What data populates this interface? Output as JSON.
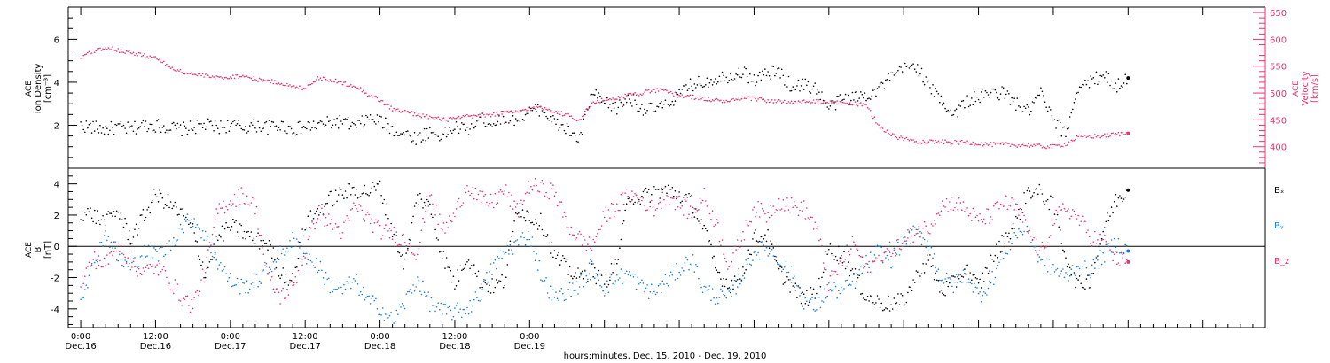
{
  "colors": {
    "black": "#000000",
    "pink": "#e8336a",
    "blue": "#1a7fd6"
  },
  "chart_data": [
    {
      "type": "scatter",
      "ylabel_left": [
        "ACE",
        "Ion Density",
        "[cm⁻³]"
      ],
      "ylabel_right": [
        "ACE",
        "Velocity",
        "[km/s]"
      ],
      "ylim_left": [
        0.0,
        7.5
      ],
      "ylim_right": [
        360,
        660
      ],
      "yticks_left": [
        "2",
        "4",
        "6"
      ],
      "yticks_right": [
        "400",
        "450",
        "500",
        "550",
        "600",
        "650"
      ],
      "series": [
        {
          "name": "Ion Density",
          "axis": "left",
          "color": "#000000",
          "x": [
            0,
            2,
            4,
            6,
            8,
            10,
            12,
            14,
            16,
            18,
            20,
            22,
            24,
            26,
            28,
            30,
            32,
            34,
            36,
            38,
            40,
            42,
            44,
            46,
            48,
            50,
            52,
            54,
            56,
            58,
            60,
            62,
            64,
            66,
            68,
            70,
            72,
            74,
            76,
            78,
            80,
            82,
            84,
            86,
            88,
            90,
            92,
            94,
            96,
            98,
            100,
            102,
            104,
            106,
            108,
            110,
            112,
            114,
            116,
            118,
            120,
            122,
            124,
            126,
            128,
            130,
            132,
            134,
            136,
            138,
            140,
            142,
            144,
            146,
            148,
            150,
            152,
            154,
            156,
            158,
            160,
            162,
            164,
            166,
            168
          ],
          "values": [
            2.0,
            1.9,
            1.8,
            1.9,
            1.8,
            2.0,
            2.0,
            1.9,
            1.8,
            1.9,
            2.0,
            1.9,
            2.0,
            1.9,
            2.0,
            1.9,
            2.0,
            1.8,
            1.9,
            2.0,
            2.1,
            2.2,
            1.9,
            2.3,
            2.2,
            1.8,
            1.6,
            1.4,
            1.7,
            1.5,
            1.9,
            1.8,
            2.3,
            2.1,
            2.4,
            2.3,
            2.6,
            2.8,
            2.1,
            1.8,
            1.3,
            3.5,
            3.0,
            2.8,
            3.3,
            2.8,
            2.7,
            3.0,
            3.4,
            3.9,
            4.0,
            4.2,
            4.3,
            4.5,
            4.1,
            4.4,
            4.5,
            3.8,
            3.9,
            3.7,
            2.8,
            3.2,
            3.3,
            3.4,
            3.7,
            4.2,
            4.6,
            4.8,
            3.8,
            3.2,
            2.5,
            3.1,
            3.3,
            3.5,
            3.5,
            3.0,
            2.6,
            3.5,
            2.2,
            1.6,
            3.8,
            4.0,
            4.4,
            3.8,
            4.2
          ]
        },
        {
          "name": "Velocity",
          "axis": "right",
          "color": "#e8336a",
          "x": [
            0,
            2,
            4,
            6,
            8,
            10,
            12,
            14,
            16,
            18,
            20,
            22,
            24,
            26,
            28,
            30,
            32,
            34,
            36,
            38,
            40,
            42,
            44,
            46,
            48,
            50,
            52,
            54,
            56,
            58,
            60,
            62,
            64,
            66,
            68,
            70,
            72,
            74,
            76,
            78,
            80,
            82,
            84,
            86,
            88,
            90,
            92,
            94,
            96,
            98,
            100,
            102,
            104,
            106,
            108,
            110,
            112,
            114,
            116,
            118,
            120,
            122,
            124,
            126,
            128,
            130,
            132,
            134,
            136,
            138,
            140,
            142,
            144,
            146,
            148,
            150,
            152,
            154,
            156,
            158,
            160,
            162,
            164,
            166,
            168
          ],
          "values": [
            565,
            578,
            585,
            580,
            575,
            570,
            566,
            550,
            540,
            535,
            532,
            528,
            530,
            532,
            526,
            522,
            519,
            511,
            509,
            528,
            525,
            518,
            514,
            498,
            487,
            470,
            465,
            460,
            455,
            450,
            452,
            456,
            458,
            460,
            463,
            465,
            471,
            473,
            466,
            459,
            450,
            480,
            488,
            491,
            497,
            500,
            505,
            503,
            495,
            493,
            489,
            486,
            484,
            489,
            490,
            486,
            484,
            481,
            484,
            484,
            482,
            482,
            480,
            476,
            440,
            421,
            415,
            410,
            410,
            409,
            408,
            408,
            406,
            404,
            404,
            403,
            403,
            401,
            400,
            405,
            418,
            419,
            420,
            423,
            425
          ]
        }
      ]
    },
    {
      "type": "scatter",
      "ylabel": [
        "ACE",
        "B",
        "[nT]"
      ],
      "ylim": [
        -5.2,
        5.0
      ],
      "yticks": [
        "-4",
        "-2",
        "0",
        "2",
        "4"
      ],
      "legend": [
        {
          "label": "Bₓ",
          "color": "#000000"
        },
        {
          "label": "Bᵧ",
          "color": "#1a7fd6"
        },
        {
          "label": "B_z",
          "color": "#e8336a"
        }
      ],
      "series": [
        {
          "name": "Bx",
          "color": "#000000",
          "x": [
            0,
            2,
            4,
            6,
            8,
            10,
            12,
            14,
            16,
            18,
            20,
            22,
            24,
            26,
            28,
            30,
            32,
            34,
            36,
            38,
            40,
            42,
            44,
            46,
            48,
            50,
            52,
            54,
            56,
            58,
            60,
            62,
            64,
            66,
            68,
            70,
            72,
            74,
            76,
            78,
            80,
            82,
            84,
            86,
            88,
            90,
            92,
            94,
            96,
            98,
            100,
            102,
            104,
            106,
            108,
            110,
            112,
            114,
            116,
            118,
            120,
            122,
            124,
            126,
            128,
            130,
            132,
            134,
            136,
            138,
            140,
            142,
            144,
            146,
            148,
            150,
            152,
            154,
            156,
            158,
            160,
            162,
            164,
            166,
            168
          ],
          "values": [
            2.2,
            2.0,
            1.5,
            2.3,
            0.5,
            1.8,
            3.3,
            2.8,
            2.1,
            1.0,
            -1.8,
            0.5,
            1.3,
            0.9,
            0.4,
            0.2,
            -1.6,
            -2.2,
            1.4,
            2.2,
            3.0,
            3.4,
            3.6,
            3.5,
            3.8,
            1.0,
            -1.2,
            3.2,
            2.5,
            -0.5,
            -2.4,
            -0.6,
            -2.2,
            -2.6,
            -2.2,
            2.5,
            1.9,
            1.5,
            -0.6,
            -1.4,
            -2.0,
            -1.6,
            -2.4,
            -1.0,
            3.3,
            3.1,
            3.5,
            3.6,
            3.3,
            2.8,
            1.1,
            -1.6,
            -2.5,
            -1.8,
            0.5,
            0.8,
            -1.6,
            -2.5,
            -3.4,
            -3.0,
            -0.2,
            -0.5,
            -1.8,
            -3.2,
            -3.6,
            -3.7,
            -3.5,
            -2.0,
            -0.8,
            -2.9,
            -2.4,
            -1.5,
            -2.6,
            -1.0,
            0.4,
            1.5,
            3.6,
            3.4,
            2.6,
            -0.6,
            -2.5,
            -2.1,
            1.0,
            2.9,
            3.6
          ]
        },
        {
          "name": "By",
          "color": "#1a7fd6",
          "x": [
            0,
            2,
            4,
            6,
            8,
            10,
            12,
            14,
            16,
            18,
            20,
            22,
            24,
            26,
            28,
            30,
            32,
            34,
            36,
            38,
            40,
            42,
            44,
            46,
            48,
            50,
            52,
            54,
            56,
            58,
            60,
            62,
            64,
            66,
            68,
            70,
            72,
            74,
            76,
            78,
            80,
            82,
            84,
            86,
            88,
            90,
            92,
            94,
            96,
            98,
            100,
            102,
            104,
            106,
            108,
            110,
            112,
            114,
            116,
            118,
            120,
            122,
            124,
            126,
            128,
            130,
            132,
            134,
            136,
            138,
            140,
            142,
            144,
            146,
            148,
            150,
            152,
            154,
            156,
            158,
            160,
            162,
            164,
            166,
            168
          ],
          "values": [
            -3.2,
            -1.2,
            1.0,
            -0.8,
            -1.4,
            -0.4,
            -0.5,
            -0.2,
            1.2,
            1.8,
            0.6,
            -1.0,
            -2.2,
            -2.6,
            -2.3,
            -1.5,
            -0.5,
            0.4,
            -0.6,
            -1.2,
            -2.5,
            -2.8,
            -2.2,
            -3.5,
            -3.9,
            -4.8,
            -3.6,
            -2.1,
            -3.6,
            -4.2,
            -4.2,
            -4.0,
            -3.1,
            -1.4,
            -0.4,
            0.2,
            0.8,
            -2.0,
            -3.4,
            -2.8,
            -2.5,
            -1.2,
            -2.7,
            -2.0,
            -1.8,
            -2.6,
            -3.0,
            -2.2,
            -1.5,
            -0.8,
            -2.8,
            -3.2,
            -3.3,
            -1.9,
            -0.4,
            -0.1,
            -0.9,
            -1.8,
            -3.5,
            -3.9,
            -2.7,
            -2.9,
            -2.3,
            -1.1,
            -0.3,
            -0.9,
            0.4,
            0.9,
            0.2,
            -2.0,
            -2.5,
            -1.6,
            -3.2,
            -2.3,
            -0.5,
            0.8,
            1.2,
            -1.2,
            -1.4,
            -2.0,
            -1.2,
            -1.5,
            -0.6,
            0.2,
            -0.3
          ]
        },
        {
          "name": "Bz",
          "color": "#e8336a",
          "x": [
            0,
            2,
            4,
            6,
            8,
            10,
            12,
            14,
            16,
            18,
            20,
            22,
            24,
            26,
            28,
            30,
            32,
            34,
            36,
            38,
            40,
            42,
            44,
            46,
            48,
            50,
            52,
            54,
            56,
            58,
            60,
            62,
            64,
            66,
            68,
            70,
            72,
            74,
            76,
            78,
            80,
            82,
            84,
            86,
            88,
            90,
            92,
            94,
            96,
            98,
            100,
            102,
            104,
            106,
            108,
            110,
            112,
            114,
            116,
            118,
            120,
            122,
            124,
            126,
            128,
            130,
            132,
            134,
            136,
            138,
            140,
            142,
            144,
            146,
            148,
            150,
            152,
            154,
            156,
            158,
            160,
            162,
            164,
            166,
            168
          ],
          "values": [
            -2.4,
            -0.8,
            -1.2,
            0.3,
            -1.0,
            -1.7,
            -1.3,
            -2.0,
            -3.2,
            -3.8,
            -1.5,
            2.3,
            2.9,
            3.3,
            2.6,
            -2.0,
            -3.2,
            -2.6,
            -0.4,
            2.2,
            1.5,
            0.9,
            2.6,
            1.8,
            1.0,
            0.8,
            0.4,
            -0.4,
            3.5,
            1.0,
            2.0,
            4.0,
            3.0,
            2.8,
            3.6,
            2.2,
            3.9,
            3.7,
            3.5,
            1.4,
            0.5,
            0.0,
            1.9,
            2.6,
            3.3,
            3.0,
            2.4,
            3.3,
            2.7,
            2.1,
            3.2,
            1.4,
            -1.3,
            0.5,
            2.5,
            2.0,
            2.9,
            2.6,
            2.4,
            1.2,
            -2.4,
            -1.1,
            0.3,
            -1.6,
            -0.8,
            -0.2,
            0.2,
            1.0,
            1.2,
            2.6,
            2.8,
            2.4,
            1.6,
            2.0,
            2.8,
            2.5,
            1.0,
            -0.5,
            1.6,
            2.5,
            1.8,
            0.6,
            0.4,
            -0.8,
            -1.0
          ]
        }
      ]
    }
  ],
  "x_axis": {
    "title": "hours:minutes, Dec. 15, 2010 - Dec. 19, 2010",
    "range_hours": [
      -2,
      190
    ],
    "ticks": [
      {
        "time": "0:00",
        "date": "Dec.16"
      },
      {
        "time": "12:00",
        "date": "Dec.16"
      },
      {
        "time": "0:00",
        "date": "Dec.17"
      },
      {
        "time": "12:00",
        "date": "Dec.17"
      },
      {
        "time": "0:00",
        "date": "Dec.18"
      },
      {
        "time": "12:00",
        "date": "Dec.18"
      },
      {
        "time": "0:00",
        "date": "Dec.19"
      }
    ]
  }
}
